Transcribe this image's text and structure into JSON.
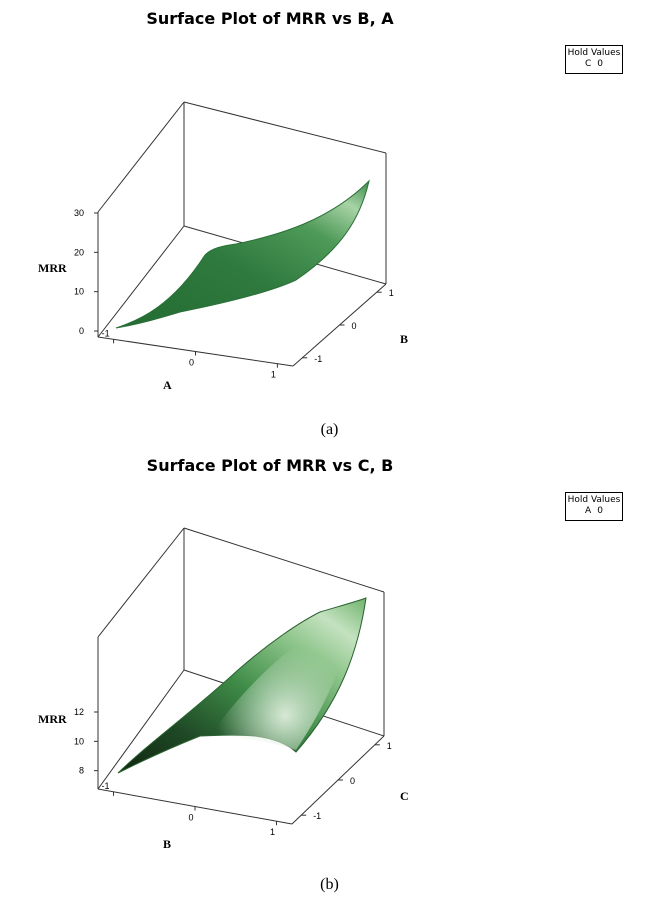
{
  "chart_data": [
    {
      "type": "surface",
      "title": "Surface Plot of MRR vs B, A",
      "caption": "(a)",
      "zlabel": "MRR",
      "xlabel": "A",
      "ylabel": "B",
      "zticks": [
        "0",
        "10",
        "20",
        "30"
      ],
      "zlim": [
        0,
        30
      ],
      "xticks": [
        "-1",
        "0",
        "1"
      ],
      "yticks": [
        "-1",
        "0",
        "1"
      ],
      "hold_values": {
        "header": "Hold Values",
        "items": [
          {
            "var": "C",
            "value": "0"
          }
        ]
      },
      "x": [
        -1,
        0,
        1
      ],
      "y": [
        -1,
        0,
        1
      ],
      "z_grid": [
        [
          2,
          9,
          19
        ],
        [
          8,
          15,
          24
        ],
        [
          14,
          21,
          30
        ]
      ],
      "colors": {
        "base": "#2f7a3e",
        "light": "#cfe8cc",
        "dark": "#1f4f28"
      }
    },
    {
      "type": "surface",
      "title": "Surface Plot of MRR vs C, B",
      "caption": "(b)",
      "zlabel": "MRR",
      "xlabel": "B",
      "ylabel": "C",
      "zticks": [
        "8",
        "10",
        "12"
      ],
      "zlim": [
        7.5,
        13.5
      ],
      "xticks": [
        "-1",
        "0",
        "1"
      ],
      "yticks": [
        "-1",
        "0",
        "1"
      ],
      "hold_values": {
        "header": "Hold Values",
        "items": [
          {
            "var": "A",
            "value": "0"
          }
        ]
      },
      "x": [
        -1,
        0,
        1
      ],
      "y": [
        -1,
        0,
        1
      ],
      "z_grid": [
        [
          8.4,
          10.6,
          10.3
        ],
        [
          9.9,
          11.8,
          12.4
        ],
        [
          10.8,
          12.7,
          13.6
        ]
      ],
      "colors": {
        "base": "#3d8a45",
        "light": "#c9e6c6",
        "dark": "#17321b"
      }
    }
  ]
}
